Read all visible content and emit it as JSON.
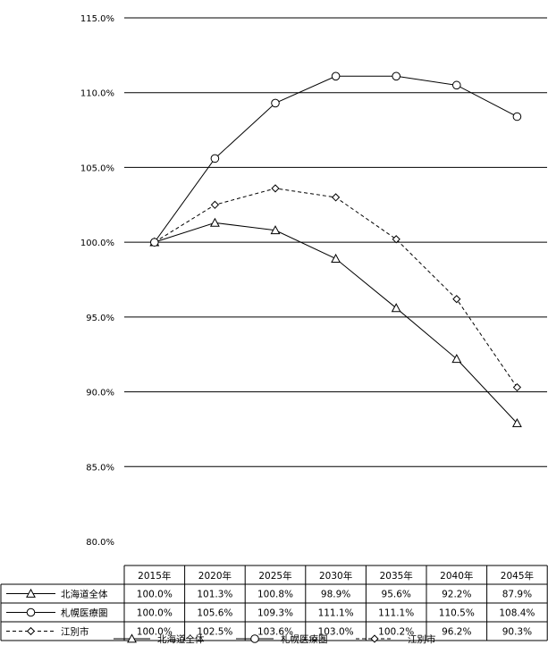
{
  "chart_data": {
    "type": "line",
    "categories": [
      "2015年",
      "2020年",
      "2025年",
      "2030年",
      "2035年",
      "2040年",
      "2045年"
    ],
    "ylim": [
      80,
      115
    ],
    "yticks": [
      "115.0%",
      "110.0%",
      "105.0%",
      "100.0%",
      "95.0%",
      "90.0%",
      "85.0%",
      "80.0%"
    ],
    "grid": true,
    "legend_position": "bottom",
    "series": [
      {
        "name": "北海道全体",
        "marker": "triangle",
        "dash": "solid",
        "values": [
          100.0,
          101.3,
          100.8,
          98.9,
          95.6,
          92.2,
          87.9
        ],
        "labels": [
          "100.0%",
          "101.3%",
          "100.8%",
          "98.9%",
          "95.6%",
          "92.2%",
          "87.9%"
        ]
      },
      {
        "name": "札幌医療圏",
        "marker": "circle",
        "dash": "solid",
        "values": [
          100.0,
          105.6,
          109.3,
          111.1,
          111.1,
          110.5,
          108.4
        ],
        "labels": [
          "100.0%",
          "105.6%",
          "109.3%",
          "111.1%",
          "111.1%",
          "110.5%",
          "108.4%"
        ]
      },
      {
        "name": "江別市",
        "marker": "diamond",
        "dash": "dashed",
        "values": [
          100.0,
          102.5,
          103.6,
          103.0,
          100.2,
          96.2,
          90.3
        ],
        "labels": [
          "100.0%",
          "102.5%",
          "103.6%",
          "103.0%",
          "100.2%",
          "96.2%",
          "90.3%"
        ]
      }
    ]
  }
}
